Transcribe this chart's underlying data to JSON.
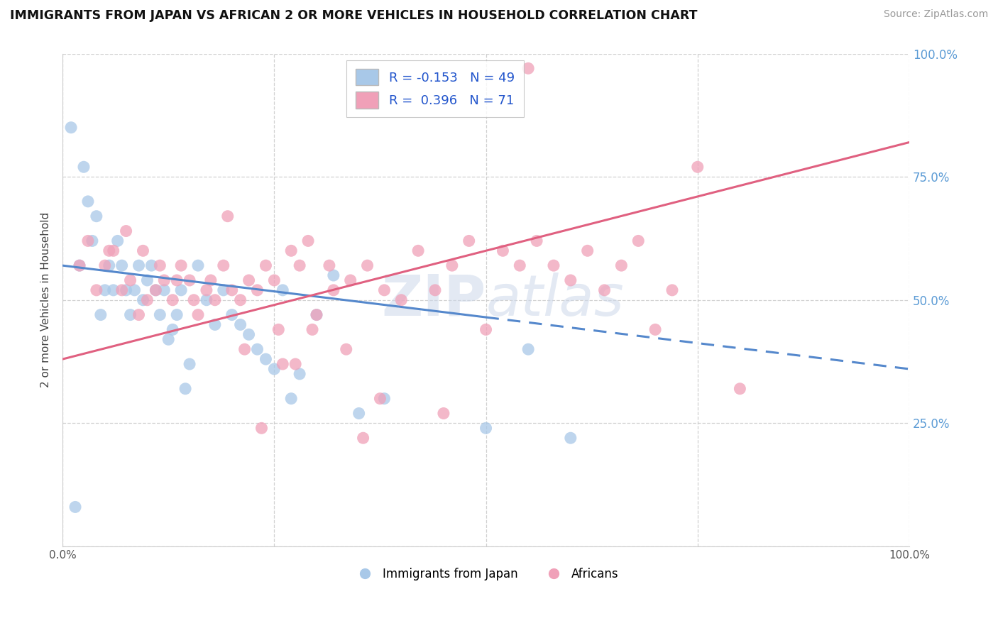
{
  "title": "IMMIGRANTS FROM JAPAN VS AFRICAN 2 OR MORE VEHICLES IN HOUSEHOLD CORRELATION CHART",
  "source": "Source: ZipAtlas.com",
  "ylabel": "2 or more Vehicles in Household",
  "legend_r_japan": "R = -0.153",
  "legend_n_japan": "N = 49",
  "legend_r_africa": "R =  0.396",
  "legend_n_africa": "N = 71",
  "legend_names": [
    "Immigrants from Japan",
    "Africans"
  ],
  "japan_r": -0.153,
  "japan_n": 49,
  "africa_r": 0.396,
  "africa_n": 71,
  "xlim": [
    0.0,
    100.0
  ],
  "ylim": [
    0.0,
    100.0
  ],
  "blue_color": "#a8c8e8",
  "pink_color": "#f0a0b8",
  "blue_line_color": "#5588cc",
  "pink_line_color": "#e06080",
  "background_color": "#ffffff",
  "watermark": "ZIPatlas",
  "grid_color": "#cccccc",
  "japan_x": [
    1.5,
    2.0,
    2.5,
    3.0,
    3.5,
    4.0,
    4.5,
    5.0,
    5.5,
    6.0,
    6.5,
    7.0,
    7.5,
    8.0,
    8.5,
    9.0,
    9.5,
    10.0,
    10.5,
    11.0,
    11.5,
    12.0,
    12.5,
    13.0,
    13.5,
    14.0,
    14.5,
    15.0,
    16.0,
    17.0,
    18.0,
    19.0,
    20.0,
    21.0,
    22.0,
    23.0,
    24.0,
    25.0,
    26.0,
    27.0,
    28.0,
    30.0,
    32.0,
    35.0,
    38.0,
    50.0,
    55.0,
    60.0,
    1.0
  ],
  "japan_y": [
    8.0,
    57.0,
    77.0,
    70.0,
    62.0,
    67.0,
    47.0,
    52.0,
    57.0,
    52.0,
    62.0,
    57.0,
    52.0,
    47.0,
    52.0,
    57.0,
    50.0,
    54.0,
    57.0,
    52.0,
    47.0,
    52.0,
    42.0,
    44.0,
    47.0,
    52.0,
    32.0,
    37.0,
    57.0,
    50.0,
    45.0,
    52.0,
    47.0,
    45.0,
    43.0,
    40.0,
    38.0,
    36.0,
    52.0,
    30.0,
    35.0,
    47.0,
    55.0,
    27.0,
    30.0,
    24.0,
    40.0,
    22.0,
    85.0
  ],
  "africa_x": [
    2.0,
    3.0,
    4.0,
    5.0,
    6.0,
    7.0,
    8.0,
    9.0,
    10.0,
    11.0,
    12.0,
    13.0,
    14.0,
    15.0,
    16.0,
    17.0,
    18.0,
    19.0,
    20.0,
    21.0,
    22.0,
    23.0,
    24.0,
    25.0,
    26.0,
    27.0,
    28.0,
    29.0,
    30.0,
    32.0,
    34.0,
    36.0,
    38.0,
    40.0,
    42.0,
    44.0,
    46.0,
    48.0,
    50.0,
    52.0,
    54.0,
    56.0,
    58.0,
    60.0,
    62.0,
    64.0,
    66.0,
    68.0,
    70.0,
    72.0,
    75.0,
    80.0,
    5.5,
    7.5,
    9.5,
    11.5,
    13.5,
    15.5,
    17.5,
    19.5,
    21.5,
    23.5,
    25.5,
    27.5,
    29.5,
    31.5,
    33.5,
    35.5,
    37.5,
    45.0,
    55.0
  ],
  "africa_y": [
    57.0,
    62.0,
    52.0,
    57.0,
    60.0,
    52.0,
    54.0,
    47.0,
    50.0,
    52.0,
    54.0,
    50.0,
    57.0,
    54.0,
    47.0,
    52.0,
    50.0,
    57.0,
    52.0,
    50.0,
    54.0,
    52.0,
    57.0,
    54.0,
    37.0,
    60.0,
    57.0,
    62.0,
    47.0,
    52.0,
    54.0,
    57.0,
    52.0,
    50.0,
    60.0,
    52.0,
    57.0,
    62.0,
    44.0,
    60.0,
    57.0,
    62.0,
    57.0,
    54.0,
    60.0,
    52.0,
    57.0,
    62.0,
    44.0,
    52.0,
    77.0,
    32.0,
    60.0,
    64.0,
    60.0,
    57.0,
    54.0,
    50.0,
    54.0,
    67.0,
    40.0,
    24.0,
    44.0,
    37.0,
    44.0,
    57.0,
    40.0,
    22.0,
    30.0,
    27.0,
    97.0
  ],
  "japan_line_x0": 0,
  "japan_line_y0": 57.0,
  "japan_line_x1": 50,
  "japan_line_y1": 46.5,
  "japan_line_x2": 100,
  "japan_line_y2": 36.0,
  "africa_line_x0": 0,
  "africa_line_y0": 38.0,
  "africa_line_x1": 100,
  "africa_line_y1": 82.0
}
